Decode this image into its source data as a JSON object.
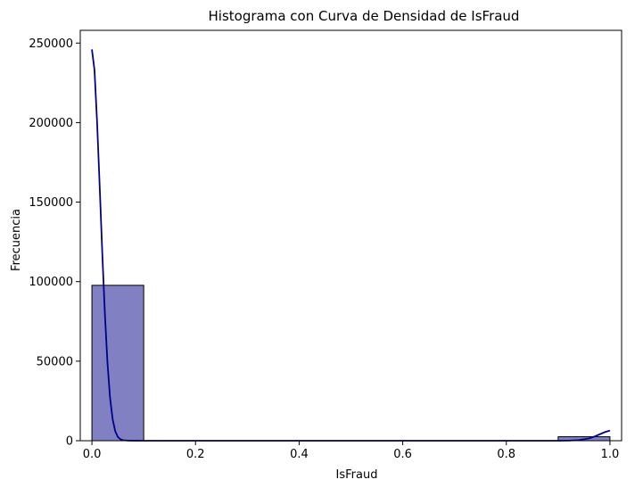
{
  "chart_data": {
    "type": "bar",
    "title": "Histograma con Curva de Densidad de IsFraud",
    "xlabel": "IsFraud",
    "ylabel": "Frecuencia",
    "xlim": [
      -0.0225,
      1.0225
    ],
    "ylim": [
      0,
      258000
    ],
    "x_ticks": [
      0.0,
      0.2,
      0.4,
      0.6,
      0.8,
      1.0
    ],
    "x_tick_labels": [
      "0.0",
      "0.2",
      "0.4",
      "0.6",
      "0.8",
      "1.0"
    ],
    "y_ticks": [
      0,
      50000,
      100000,
      150000,
      200000,
      250000
    ],
    "y_tick_labels": [
      "0",
      "50000",
      "100000",
      "150000",
      "200000",
      "250000"
    ],
    "grid": false,
    "bins": [
      {
        "x0": 0.0,
        "x1": 0.1,
        "count": 97700
      },
      {
        "x0": 0.1,
        "x1": 0.2,
        "count": 0
      },
      {
        "x0": 0.2,
        "x1": 0.3,
        "count": 0
      },
      {
        "x0": 0.3,
        "x1": 0.4,
        "count": 0
      },
      {
        "x0": 0.4,
        "x1": 0.5,
        "count": 0
      },
      {
        "x0": 0.5,
        "x1": 0.6,
        "count": 0
      },
      {
        "x0": 0.6,
        "x1": 0.7,
        "count": 0
      },
      {
        "x0": 0.7,
        "x1": 0.8,
        "count": 0
      },
      {
        "x0": 0.8,
        "x1": 0.9,
        "count": 0
      },
      {
        "x0": 0.9,
        "x1": 1.0,
        "count": 2500
      }
    ],
    "density_curve": {
      "x": [
        0.0,
        0.005,
        0.01,
        0.015,
        0.02,
        0.025,
        0.03,
        0.035,
        0.04,
        0.045,
        0.05,
        0.055,
        0.06,
        0.07,
        0.08,
        0.1,
        0.2,
        0.4,
        0.6,
        0.8,
        0.9,
        0.92,
        0.94,
        0.96,
        0.97,
        0.98,
        0.99,
        1.0
      ],
      "y": [
        246000,
        233000,
        200000,
        160000,
        118000,
        80000,
        49000,
        27000,
        13500,
        6000,
        2400,
        900,
        300,
        80,
        20,
        0,
        0,
        0,
        0,
        0,
        0,
        80,
        400,
        1500,
        2600,
        4000,
        5400,
        6400
      ]
    },
    "colors": {
      "bar_fill": "#8080c2",
      "bar_edge": "#000000",
      "curve": "#00008b"
    }
  }
}
